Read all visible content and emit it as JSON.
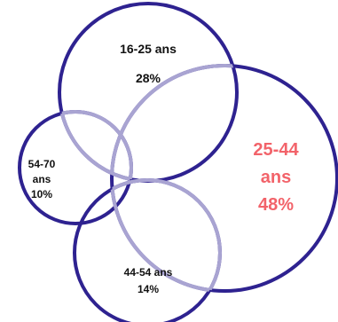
{
  "circles": [
    {
      "id": "c16",
      "label_line1": "16-25 ans",
      "label_line2": "28%",
      "color": "#2e2290"
    },
    {
      "id": "c25",
      "label_line1": "25-44",
      "label_line2": "ans",
      "label_line3": "48%",
      "color": "#2e2290",
      "label_color": "#f2636a"
    },
    {
      "id": "c54",
      "label_line1": "54-70",
      "label_line2": "ans",
      "label_line3": "10%",
      "color": "#2e2290"
    },
    {
      "id": "c44",
      "label_line1": "44-54 ans",
      "label_line2": "14%",
      "color": "#2e2290"
    }
  ],
  "colors": {
    "outline": "#2e2290",
    "overlap": "#a9a4d2",
    "highlight_label": "#f2636a",
    "label": "#111111"
  }
}
